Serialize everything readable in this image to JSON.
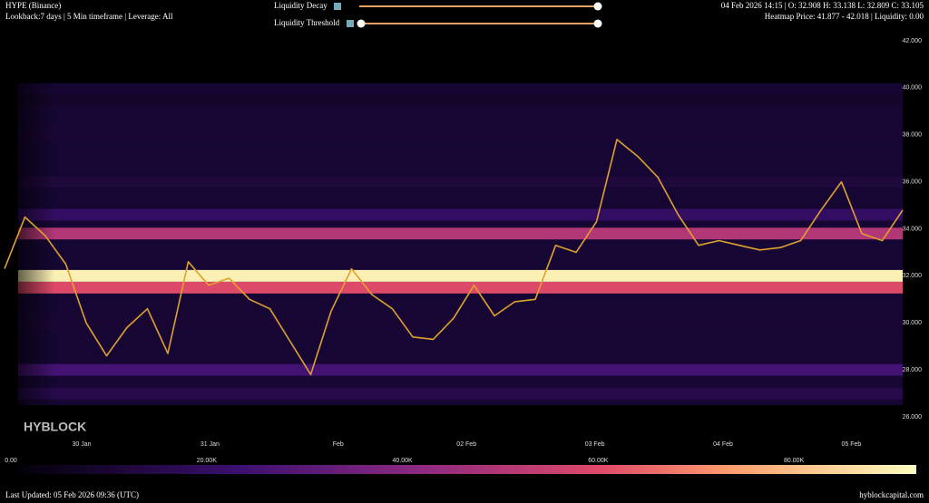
{
  "header": {
    "title": "HYPE (Binance)",
    "subtitle": "Lookback:7 days | 5 Min timeframe | Leverage: All",
    "ohlc": "04 Feb 2026 14:15 | O: 32.908 H: 33.138 L: 32.809 C: 33.105",
    "heatmap_info": "Heatmap Price: 41.877 - 42.018 | Liquidity: 0.00",
    "controls": [
      "Liquidity Decay",
      "Liquidity Threshold"
    ]
  },
  "chart_data": {
    "type": "line",
    "watermark": "HYBLOCK",
    "xticks": [
      "30 Jan",
      "31 Jan",
      "Feb",
      "02 Feb",
      "03 Feb",
      "04 Feb",
      "05 Feb"
    ],
    "ylim": [
      26,
      42
    ],
    "yticks": [
      {
        "value": 26,
        "label": "26.000"
      },
      {
        "value": 28,
        "label": "28.000"
      },
      {
        "value": 30,
        "label": "30.000"
      },
      {
        "value": 32,
        "label": "32.000"
      },
      {
        "value": 34,
        "label": "34.000"
      },
      {
        "value": 36,
        "label": "36.000"
      },
      {
        "value": 38,
        "label": "38.000"
      },
      {
        "value": 40,
        "label": "40.000"
      },
      {
        "value": 42,
        "label": "42.000"
      }
    ],
    "series": [
      {
        "name": "HYPE",
        "color": "#e0a030",
        "values": [
          32.3,
          34.5,
          33.7,
          32.5,
          30.0,
          28.6,
          29.8,
          30.6,
          28.7,
          32.6,
          31.6,
          31.9,
          31.0,
          30.6,
          29.2,
          27.8,
          30.5,
          32.3,
          31.2,
          30.6,
          29.4,
          29.3,
          30.2,
          31.6,
          30.3,
          30.9,
          31.0,
          33.3,
          33.0,
          34.3,
          37.8,
          37.1,
          36.2,
          34.6,
          33.3,
          33.5,
          33.3,
          33.1,
          33.2,
          33.5,
          34.8,
          36.0,
          33.8,
          33.5,
          34.8
        ]
      }
    ],
    "heatmap": {
      "levels": [
        27.0,
        28.0,
        30.0,
        31.5,
        32.0,
        33.8,
        34.6,
        36.0,
        38.0,
        39.5
      ],
      "liquidity": [
        15000,
        25000,
        10000,
        60000,
        90000,
        50000,
        20000,
        12000,
        10000,
        8000
      ]
    },
    "colorlim": [
      0,
      92500
    ],
    "colorticks": [
      {
        "value": 0,
        "label": "0.00"
      },
      {
        "value": 20000,
        "label": "20.00K"
      },
      {
        "value": 40000,
        "label": "40.00K"
      },
      {
        "value": 60000,
        "label": "60.00K"
      },
      {
        "value": 80000,
        "label": "80.00K"
      }
    ]
  },
  "footer": {
    "updated": "Last Updated: 05 Feb 2026 09:36 (UTC)",
    "site": "hyblockcapital.com"
  }
}
